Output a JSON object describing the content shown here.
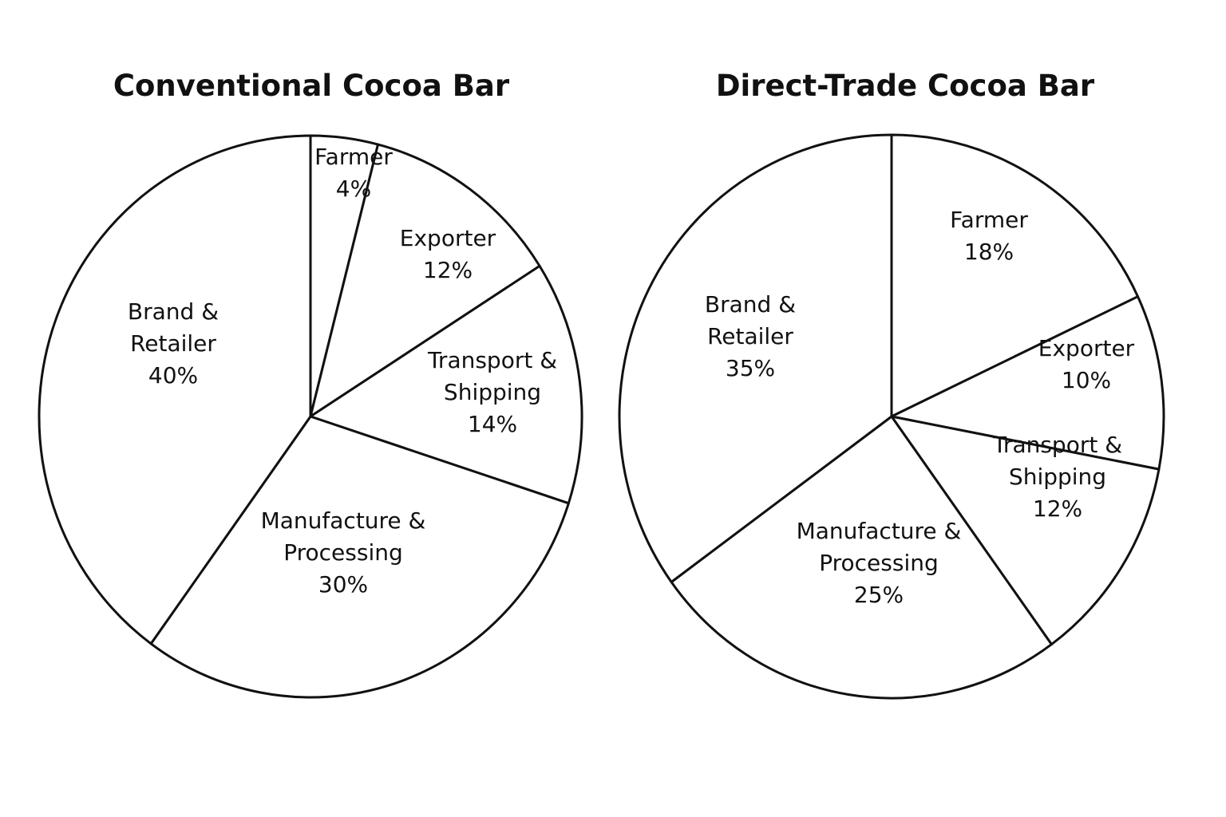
{
  "colors": {
    "background": "#ffffff",
    "stroke": "#111111",
    "text": "#111111"
  },
  "chart_data": [
    {
      "type": "pie",
      "title": "Conventional Cocoa Bar",
      "start_angle_deg": 0,
      "direction": "clockwise",
      "slices": [
        {
          "name": "Farmer",
          "label_lines": [
            "Farmer"
          ],
          "value": 4,
          "value_label": "4%"
        },
        {
          "name": "Exporter",
          "label_lines": [
            "Exporter"
          ],
          "value": 12,
          "value_label": "12%"
        },
        {
          "name": "Transport & Shipping",
          "label_lines": [
            "Transport &",
            "Shipping"
          ],
          "value": 14,
          "value_label": "14%"
        },
        {
          "name": "Manufacture & Processing",
          "label_lines": [
            "Manufacture &",
            "Processing"
          ],
          "value": 30,
          "value_label": "30%"
        },
        {
          "name": "Brand & Retailer",
          "label_lines": [
            "Brand &",
            "Retailer"
          ],
          "value": 40,
          "value_label": "40%"
        }
      ]
    },
    {
      "type": "pie",
      "title": "Direct-Trade Cocoa Bar",
      "start_angle_deg": 0,
      "direction": "clockwise",
      "slices": [
        {
          "name": "Farmer",
          "label_lines": [
            "Farmer"
          ],
          "value": 18,
          "value_label": "18%"
        },
        {
          "name": "Exporter",
          "label_lines": [
            "Exporter"
          ],
          "value": 10,
          "value_label": "10%"
        },
        {
          "name": "Transport & Shipping",
          "label_lines": [
            "Transport &",
            "Shipping"
          ],
          "value": 12,
          "value_label": "12%"
        },
        {
          "name": "Manufacture & Processing",
          "label_lines": [
            "Manufacture &",
            "Processing"
          ],
          "value": 25,
          "value_label": "25%"
        },
        {
          "name": "Brand & Retailer",
          "label_lines": [
            "Brand &",
            "Retailer"
          ],
          "value": 35,
          "value_label": "35%"
        }
      ]
    }
  ]
}
